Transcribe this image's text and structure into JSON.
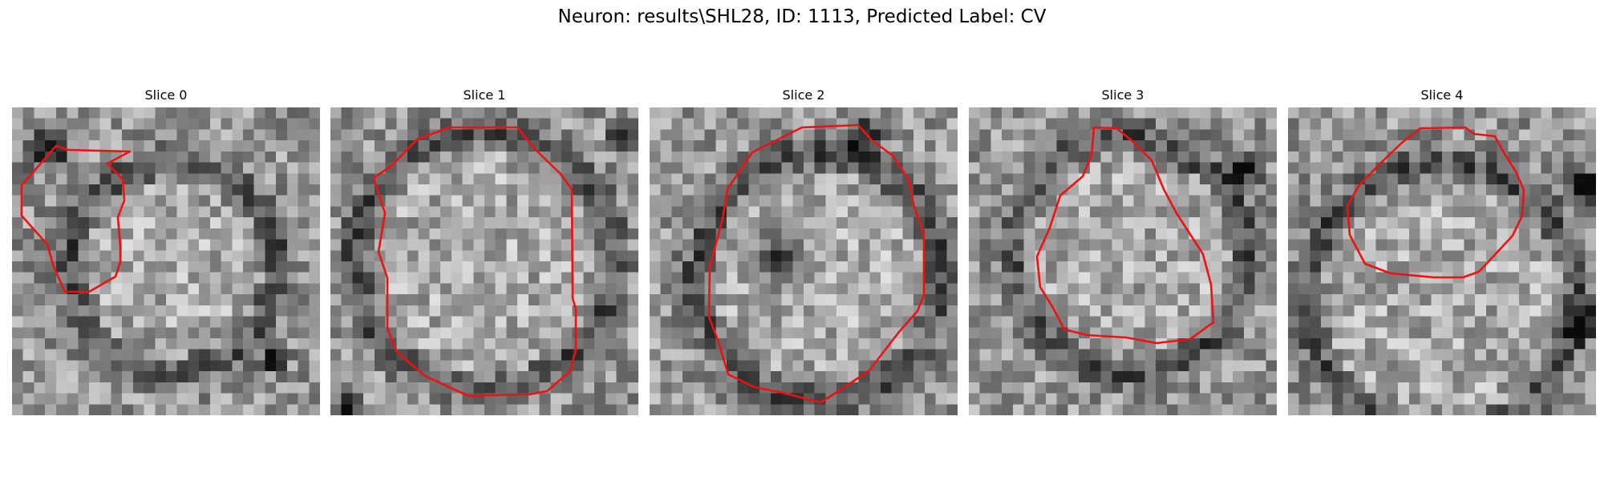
{
  "figure": {
    "title": "Neuron: results\\SHL28, ID: 1113, Predicted Label: CV",
    "contour_color": "#ee1111",
    "colormap": "gray"
  },
  "slices": [
    {
      "label": "Slice 0"
    },
    {
      "label": "Slice 1"
    },
    {
      "label": "Slice 2"
    },
    {
      "label": "Slice 3"
    },
    {
      "label": "Slice 4"
    }
  ]
}
